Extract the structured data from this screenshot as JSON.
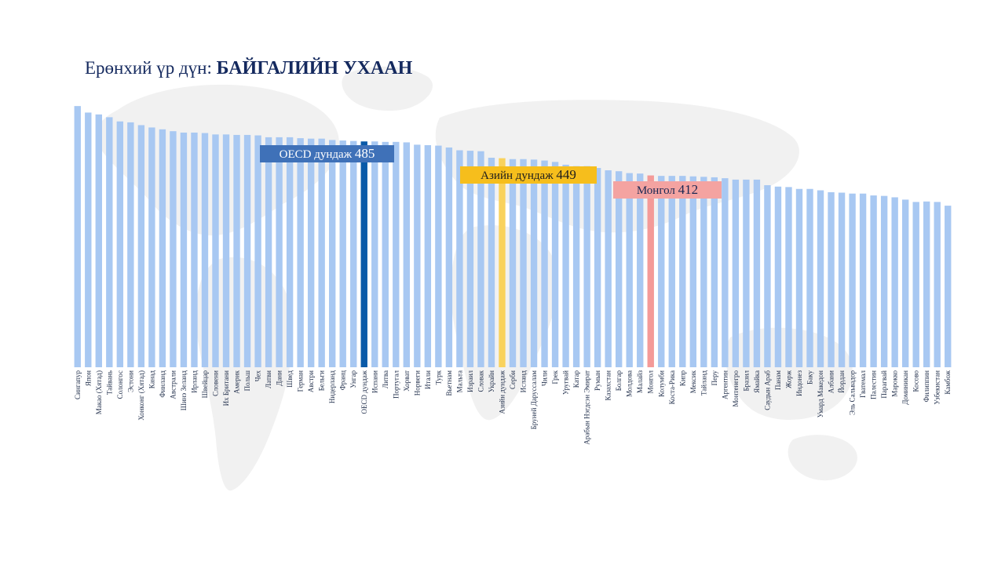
{
  "title": {
    "prefix": "Ерөнхий үр дүн: ",
    "main": "БАЙГАЛИЙН УХААН"
  },
  "callouts": {
    "oecd": {
      "label": "OECD дундаж",
      "value": "485"
    },
    "asia": {
      "label": "Азийн дундаж",
      "value": "449"
    },
    "mongolia": {
      "label": "Монгол",
      "value": "412"
    }
  },
  "colors": {
    "bar": "#a8c8f2",
    "oecd_bar": "#0a5aa8",
    "asia_bar": "#f9d25c",
    "mongolia_bar": "#f49a98",
    "title": "#14295e"
  },
  "chart_data": {
    "type": "bar",
    "title": "Ерөнхий үр дүн: БАЙГАЛИЙН УХААН",
    "categories": [
      "Сингапур",
      "Япон",
      "Макао (Хятад)",
      "Тайвань",
      "Солонгос",
      "Эстони",
      "Хонконг (Хятад)",
      "Канад",
      "Финланд",
      "Австрали",
      "Шинэ Зеланд",
      "Ирланд",
      "Швейцар",
      "Словени",
      "Их Британи",
      "Америк",
      "Польш",
      "Чех",
      "Латви",
      "Дани",
      "Швед",
      "Герман",
      "Австри",
      "Бельги",
      "Нидерланд",
      "Франц",
      "Унгар",
      "OECD дундаж",
      "Испани",
      "Литва",
      "Португал",
      "Хорват",
      "Норвеги",
      "Итали",
      "Турк",
      "Вьетнам",
      "Мальта",
      "Израил",
      "Словак",
      "Украйн",
      "Азийн дундаж",
      "Серби",
      "Исланд",
      "Бруней Даруссалам",
      "Чили",
      "Грек",
      "Уругвай",
      "Катар",
      "Арабын Нэгдсэн Эмират",
      "Румын",
      "Казахстан",
      "Болгар",
      "Молдова",
      "Малайз",
      "Монгол",
      "Колумби",
      "Коста-Рика",
      "Кипр",
      "Мексик",
      "Тайланд",
      "Перу",
      "Аргентин",
      "Монтенегро",
      "Бразил",
      "Ямайка",
      "Саудын Араб",
      "Панам",
      "Жорж",
      "Индонез",
      "Баку",
      "Умард Македон",
      "Албани",
      "Йордан",
      "Эль Сальвадор",
      "Гватемал",
      "Палестин",
      "Парагвай",
      "Марокко",
      "Доминикан",
      "Косово",
      "Филиппин",
      "Узбекистан",
      "Камбож"
    ],
    "values": [
      561,
      547,
      543,
      537,
      528,
      526,
      520,
      515,
      511,
      507,
      504,
      504,
      503,
      500,
      500,
      499,
      499,
      498,
      494,
      494,
      494,
      492,
      491,
      491,
      488,
      487,
      486,
      485,
      485,
      484,
      484,
      483,
      478,
      477,
      476,
      472,
      466,
      465,
      464,
      450,
      449,
      447,
      447,
      446,
      444,
      441,
      435,
      432,
      432,
      428,
      423,
      421,
      417,
      416,
      412,
      411,
      411,
      411,
      410,
      409,
      408,
      406,
      403,
      403,
      403,
      391,
      388,
      387,
      383,
      383,
      380,
      376,
      375,
      373,
      373,
      369,
      368,
      365,
      360,
      355,
      356,
      355,
      347
    ],
    "highlights": {
      "OECD дундаж": "oecd",
      "Азийн дундаж": "asia",
      "Монгол": "mongolia"
    },
    "ylim": [
      0,
      600
    ],
    "grid": false,
    "legend": "none"
  }
}
